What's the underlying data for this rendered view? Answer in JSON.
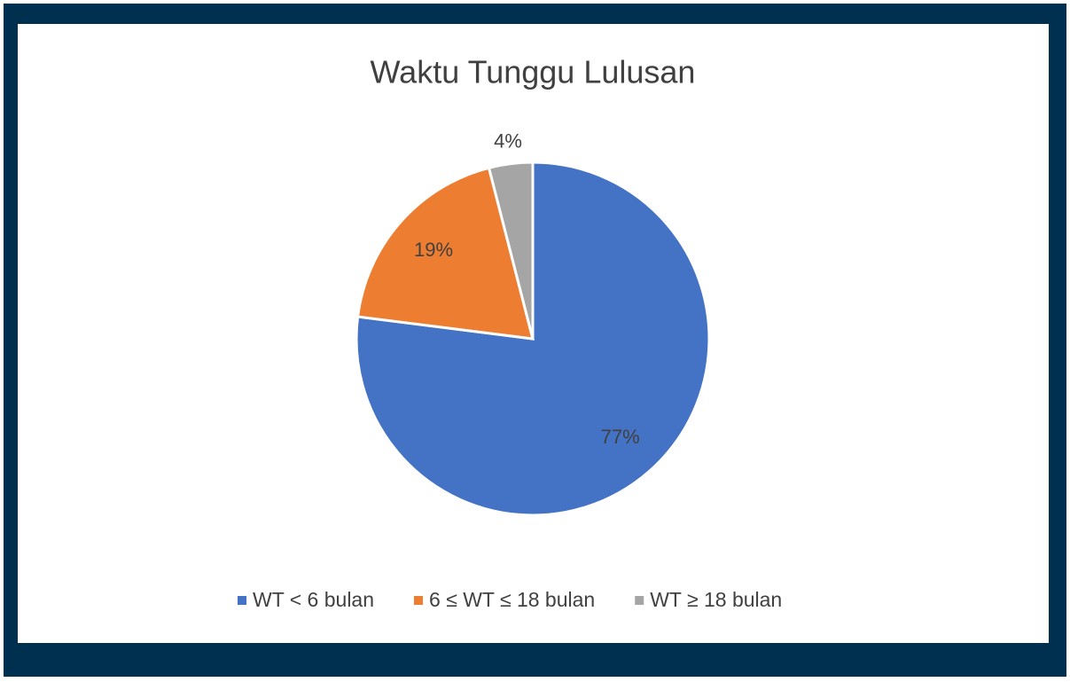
{
  "chart_data": {
    "type": "pie",
    "title": "Waktu Tunggu Lulusan",
    "categories": [
      "WT < 6 bulan",
      "6 ≤ WT ≤ 18 bulan",
      "WT ≥ 18 bulan"
    ],
    "values": [
      77,
      19,
      4
    ],
    "value_labels": [
      "77%",
      "19%",
      "4%"
    ],
    "colors": [
      "#4472c4",
      "#ed7d31",
      "#a5a5a5"
    ],
    "legend": "bottom"
  }
}
